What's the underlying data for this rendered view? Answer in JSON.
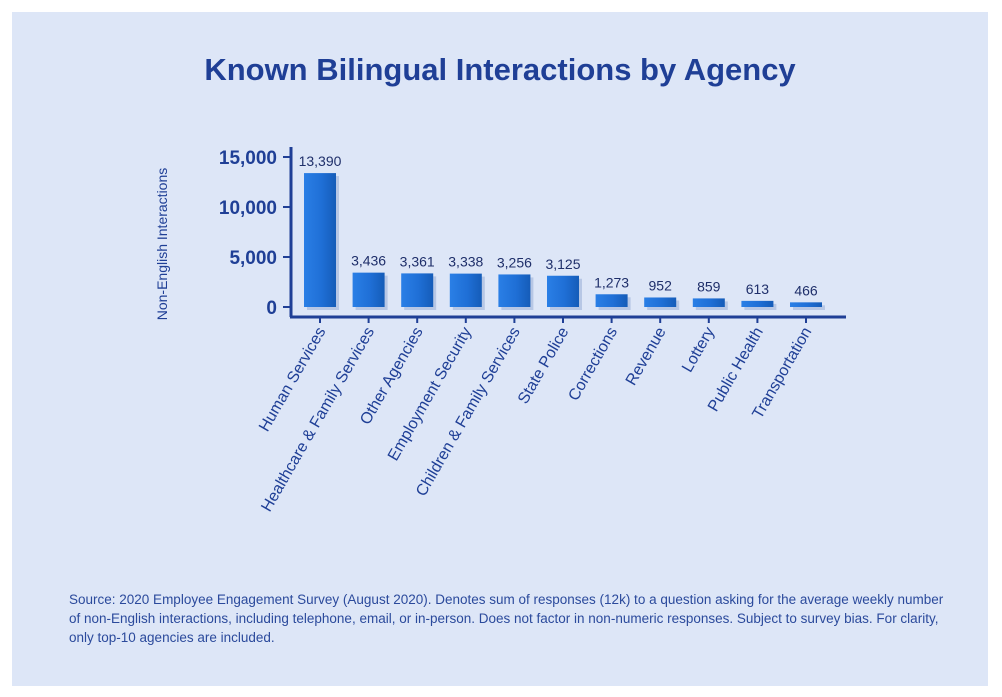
{
  "chart_data": {
    "type": "bar",
    "title": "Known Bilingual Interactions by Agency",
    "ylabel": "Non-English Interactions",
    "xlabel": "",
    "ylim": [
      0,
      15000
    ],
    "yticks": [
      0,
      5000,
      10000,
      15000
    ],
    "ytick_labels": [
      "0",
      "5,000",
      "10,000",
      "15,000"
    ],
    "categories": [
      "Human Services",
      "Healthcare & Family Services",
      "Other Agencies",
      "Employment Security",
      "Children & Family Services",
      "State Police",
      "Corrections",
      "Revenue",
      "Lottery",
      "Public Health",
      "Transportation"
    ],
    "values": [
      13390,
      3436,
      3361,
      3338,
      3256,
      3125,
      1273,
      952,
      859,
      613,
      466
    ],
    "value_labels": [
      "13,390",
      "3,436",
      "3,361",
      "3,338",
      "3,256",
      "3,125",
      "1,273",
      "952",
      "859",
      "613",
      "466"
    ],
    "grid": false,
    "bar_color": "#1f6fd6",
    "axis_color": "#1f3f96"
  },
  "source_note": "Source: 2020 Employee Engagement Survey (August 2020). Denotes sum of responses (12k) to a question asking for the average weekly number of non-English interactions, including telephone, email, or in-person. Does not factor in non-numeric responses. Subject to survey bias. For clarity, only top-10 agencies are included."
}
